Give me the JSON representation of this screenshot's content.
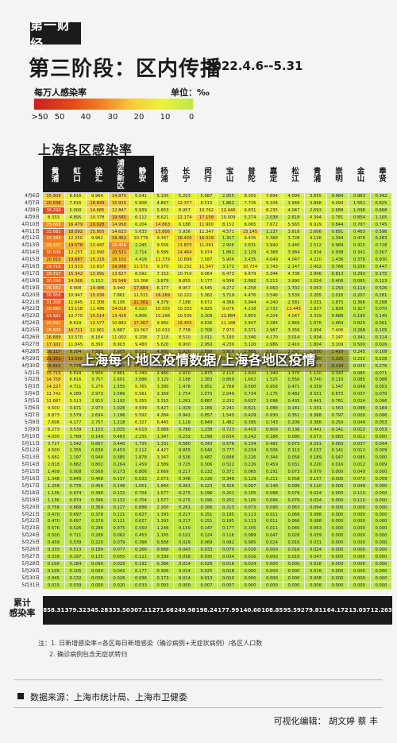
{
  "header": {
    "logo": "第一财经",
    "title": "第三阶段：区内传播",
    "date_range": "2022.4.6--5.31"
  },
  "legend": {
    "title": "每万人感染率",
    "unit": "单位：‰",
    "ticks": [
      ">50",
      "50",
      "40",
      "30",
      "20",
      "10",
      "0"
    ],
    "colors": [
      "#cf1d1c",
      "#e64a1e",
      "#ef8b2b",
      "#f7cc3a",
      "#eef237",
      "#bde74c"
    ]
  },
  "chart_data": {
    "type": "heatmap",
    "title": "上海各区感染率",
    "districts": [
      "黄浦",
      "虹口",
      "徐汇",
      "浦东新区",
      "静安",
      "杨浦",
      "长宁",
      "闵行",
      "宝山",
      "普陀",
      "嘉定",
      "松江",
      "青浦",
      "崇明",
      "金山",
      "奉贤"
    ],
    "dates": [
      "4月6日",
      "4月7日",
      "4月8日",
      "4月9日",
      "4月10日",
      "4月11日",
      "4月12日",
      "4月13日",
      "4月14日",
      "4月15日",
      "4月16日",
      "4月17日",
      "4月18日",
      "4月19日",
      "4月20日",
      "4月21日",
      "4月22日",
      "4月23日",
      "4月24日",
      "4月25日",
      "4月26日",
      "4月27日",
      "4月28日",
      "4月29日",
      "4月30日",
      "5月1日",
      "5月2日",
      "5月3日",
      "5月4日",
      "5月5日",
      "5月6日",
      "5月7日",
      "5月8日",
      "5月9日",
      "5月10日",
      "5月11日",
      "5月12日",
      "5月13日",
      "5月14日",
      "5月15日",
      "5月16日",
      "5月17日",
      "5月18日",
      "5月19日",
      "5月20日",
      "5月21日",
      "5月22日",
      "5月23日",
      "5月24日",
      "5月25日",
      "5月26日",
      "5月27日",
      "5月28日",
      "5月29日",
      "5月30日",
      "5月31日"
    ],
    "values": [
      [
        15.909,
        8.816,
        9.964,
        14.87,
        5.541,
        5.105,
        5.203,
        5.087,
        2.955,
        8.355,
        7.694,
        4.099,
        3.655,
        0.984,
        0.963,
        0.342
      ],
      [
        20.938,
        7.816,
        18.649,
        15.915,
        5.908,
        4.847,
        12.377,
        8.513,
        1.862,
        7.726,
        5.104,
        3.948,
        3.898,
        4.094,
        1.561,
        0.825
      ],
      [
        36.298,
        5.0,
        14.685,
        12.847,
        5.939,
        5.653,
        8.957,
        10.762,
        12.446,
        9.831,
        8.235,
        4.047,
        2.693,
        2.688,
        1.098,
        0.868
      ],
      [
        8.333,
        4.895,
        10.378,
        19.565,
        6.112,
        8.621,
        12.174,
        17.158,
        10.009,
        5.274,
        2.038,
        2.618,
        4.394,
        2.781,
        0.854,
        1.105
      ],
      [
        25.668,
        16.479,
        20.928,
        14.958,
        6.204,
        14.863,
        6.188,
        11.9,
        8.152,
        8.065,
        7.672,
        5.565,
        6.929,
        0.844,
        0.707,
        0.745
      ],
      [
        33.682,
        18.092,
        15.955,
        14.623,
        5.633,
        15.806,
        5.936,
        11.347,
        4.571,
        15.145,
        1.137,
        3.618,
        2.606,
        0.891,
        0.463,
        0.596
      ],
      [
        27.333,
        12.25,
        9.962,
        19.452,
        10.776,
        9.347,
        16.42,
        16.019,
        1.317,
        9.435,
        5.388,
        3.728,
        4.126,
        1.344,
        0.476,
        0.283
      ],
      [
        25.127,
        19.578,
        13.447,
        26.456,
        2.245,
        9.556,
        13.87,
        11.091,
        2.906,
        3.631,
        3.94,
        3.44,
        2.512,
        0.984,
        0.415,
        0.728
      ],
      [
        30.508,
        12.237,
        12.09,
        20.521,
        2.714,
        6.589,
        14.464,
        8.974,
        1.862,
        2.129,
        4.388,
        3.984,
        2.934,
        0.938,
        0.341,
        0.307
      ],
      [
        20.91,
        19.687,
        15.216,
        18.102,
        4.418,
        11.379,
        10.899,
        7.587,
        5.906,
        3.435,
        4.049,
        4.047,
        4.22,
        1.436,
        0.378,
        0.93
      ],
      [
        29.719,
        13.513,
        10.837,
        19.998,
        11.571,
        9.37,
        10.232,
        11.547,
        3.172,
        10.734,
        3.743,
        2.147,
        2.402,
        0.766,
        0.256,
        0.447
      ],
      [
        28.727,
        15.342,
        13.991,
        13.627,
        8.592,
        7.153,
        10.71,
        9.064,
        6.473,
        9.879,
        5.344,
        4.738,
        2.906,
        0.813,
        0.293,
        0.175
      ],
      [
        30.29,
        14.368,
        5.153,
        15.548,
        10.306,
        3.879,
        8.855,
        5.177,
        4.598,
        2.992,
        3.213,
        3.99,
        2.024,
        0.406,
        0.085,
        0.123
      ],
      [
        26.551,
        9.908,
        14.486,
        9.94,
        17.684,
        6.177,
        8.957,
        6.545,
        4.272,
        4.258,
        4.06,
        1.702,
        3.063,
        1.25,
        0.11,
        0.526
      ],
      [
        36.956,
        10.947,
        15.036,
        7.861,
        11.531,
        16.169,
        10.222,
        5.362,
        3.719,
        4.476,
        3.546,
        3.539,
        2.205,
        1.016,
        0.207,
        0.281
      ],
      [
        31.208,
        11.645,
        12.306,
        8.195,
        21.361,
        4.379,
        7.188,
        8.672,
        4.366,
        3.944,
        4.24,
        2.581,
        3.031,
        1.875,
        0.366,
        0.298
      ],
      [
        28.66,
        13.118,
        11.486,
        14.016,
        6.02,
        10.935,
        10.333,
        4.925,
        9.076,
        4.218,
        2.732,
        13.445,
        2.827,
        1.828,
        0.317,
        0.07
      ],
      [
        33.562,
        10.77,
        15.514,
        13.426,
        4.806,
        10.298,
        10.536,
        3.309,
        12.884,
        3.855,
        4.104,
        4.047,
        3.339,
        0.688,
        0.195,
        0.14
      ],
      [
        26.591,
        8.618,
        12.577,
        10.882,
        17.367,
        9.96,
        15.455,
        4.636,
        11.188,
        3.847,
        3.284,
        2.869,
        1.976,
        1.464,
        0.829,
        0.061
      ],
      [
        26.606,
        16.711,
        12.061,
        6.887,
        10.367,
        10.032,
        7.738,
        2.706,
        7.973,
        3.371,
        2.967,
        3.356,
        2.994,
        7.406,
        0.268,
        0.105
      ],
      [
        16.689,
        10.57,
        8.164,
        11.002,
        9.208,
        7.116,
        8.51,
        3.011,
        5.18,
        3.346,
        4.17,
        3.014,
        1.934,
        7.247,
        0.341,
        0.114
      ],
      [
        17.102,
        11.045,
        8.39,
        8.903,
        9.48,
        5.62,
        6.9,
        2.95,
        4.23,
        3.12,
        2.986,
        2.41,
        1.804,
        3.109,
        0.5,
        0.026
      ],
      [
        16.117,
        9.204,
        7.503,
        7.905,
        8.112,
        4.98,
        5.93,
        2.85,
        3.91,
        2.805,
        2.51,
        2.207,
        1.68,
        2.41,
        0.245,
        0.108
      ],
      [
        21.151,
        13.558,
        6.329,
        6.377,
        4.789,
        6.62,
        4.956,
        2.65,
        3.107,
        2.413,
        2.11,
        1.907,
        1.58,
        1.32,
        0.232,
        0.228
      ],
      [
        15.815,
        7.776,
        4.396,
        2.861,
        10.163,
        2.768,
        2.806,
        1.098,
        0.819,
        1.415,
        0.55,
        1.008,
        4.813,
        0.134,
        0.035,
        0.276
      ],
      [
        15.715,
        6.818,
        3.9,
        3.861,
        5.34,
        2.46,
        2.82,
        1.87,
        2.11,
        1.82,
        1.34,
        1.37,
        1.12,
        0.32,
        0.085,
        0.071
      ],
      [
        14.758,
        6.816,
        3.757,
        2.601,
        3.086,
        3.129,
        2.188,
        1.383,
        0.869,
        1.602,
        1.525,
        0.556,
        0.74,
        0.11,
        0.085,
        0.088
      ],
      [
        14.227,
        4.711,
        5.27,
        1.555,
        5.765,
        3.395,
        1.478,
        0.951,
        2.768,
        0.5,
        0.956,
        0.471,
        0.339,
        1.547,
        0.049,
        0.053
      ],
      [
        11.742,
        4.289,
        2.973,
        1.566,
        5.561,
        3.169,
        1.754,
        1.075,
        2.049,
        0.734,
        1.175,
        0.482,
        0.551,
        0.875,
        0.037,
        0.07
      ],
      [
        11.687,
        5.513,
        2.91,
        1.192,
        5.255,
        3.315,
        1.261,
        0.887,
        2.232,
        0.637,
        1.098,
        0.435,
        0.441,
        0.781,
        0.024,
        0.096
      ],
      [
        9.5,
        3.671,
        2.973,
        1.026,
        4.939,
        3.427,
        1.029,
        1.166,
        2.241,
        0.621,
        1.088,
        0.141,
        1.331,
        1.563,
        0.098,
        0.184
      ],
      [
        8.873,
        3.579,
        2.694,
        1.196,
        5.592,
        4.284,
        0.942,
        0.857,
        1.54,
        0.429,
        0.93,
        0.351,
        0.368,
        0.797,
        0.0,
        0.096
      ],
      [
        7.606,
        4.177,
        2.757,
        1.218,
        6.327,
        6.445,
        1.116,
        0.849,
        1.482,
        0.395,
        0.743,
        0.209,
        0.386,
        0.25,
        0.049,
        0.053
      ],
      [
        6.273,
        3.539,
        1.153,
        1.035,
        4.01,
        3.089,
        0.768,
        1.238,
        0.723,
        0.403,
        0.809,
        0.136,
        0.441,
        0.141,
        0.012,
        0.053
      ],
      [
        4.0,
        1.789,
        0.149,
        0.463,
        2.235,
        1.347,
        0.232,
        0.298,
        0.634,
        0.242,
        0.186,
        0.09,
        0.573,
        0.063,
        0.012,
        0.0
      ],
      [
        3.727,
        1.342,
        0.667,
        0.44,
        1.735,
        1.331,
        0.58,
        0.343,
        0.576,
        0.234,
        0.492,
        0.073,
        0.291,
        0.063,
        0.037,
        0.044
      ],
      [
        4.5,
        1.355,
        0.838,
        0.453,
        2.112,
        4.427,
        0.855,
        0.54,
        0.777,
        0.234,
        0.506,
        0.113,
        0.157,
        0.141,
        0.012,
        0.009
      ],
      [
        5.682,
        1.197,
        0.946,
        0.385,
        1.878,
        3.347,
        0.536,
        0.487,
        0.688,
        0.226,
        0.344,
        0.058,
        0.189,
        0.047,
        0.085,
        0.0
      ],
      [
        2.818,
        0.882,
        0.802,
        0.264,
        1.459,
        2.589,
        0.725,
        0.306,
        0.522,
        0.226,
        0.459,
        0.031,
        0.22,
        0.016,
        0.012,
        0.009
      ],
      [
        1.409,
        0.908,
        0.568,
        0.173,
        0.806,
        2.669,
        0.217,
        0.132,
        0.371,
        0.065,
        0.191,
        0.073,
        0.079,
        0.0,
        0.049,
        0.0
      ],
      [
        1.348,
        0.645,
        0.468,
        0.137,
        0.033,
        2.073,
        0.348,
        0.136,
        0.348,
        0.129,
        0.211,
        0.058,
        0.157,
        0.0,
        0.073,
        0.009
      ],
      [
        1.258,
        0.776,
        0.459,
        0.146,
        1.051,
        1.864,
        0.261,
        0.223,
        0.326,
        0.097,
        0.148,
        0.099,
        0.11,
        0.0,
        0.049,
        0.0
      ],
      [
        1.136,
        0.974,
        0.396,
        0.132,
        0.704,
        1.577,
        0.275,
        0.196,
        0.201,
        0.105,
        0.098,
        0.079,
        0.024,
        0.0,
        0.11,
        0.0
      ],
      [
        1.136,
        0.974,
        0.396,
        0.132,
        0.704,
        1.577,
        0.275,
        0.196,
        0.201,
        0.105,
        0.098,
        0.079,
        0.024,
        0.0,
        0.11,
        0.0
      ],
      [
        0.758,
        0.868,
        0.369,
        0.127,
        0.888,
        2.26,
        0.261,
        0.166,
        0.213,
        0.073,
        0.098,
        0.063,
        0.094,
        0.0,
        0.0,
        0.0
      ],
      [
        0.47,
        0.697,
        0.378,
        0.121,
        0.627,
        1.393,
        0.217,
        0.151,
        0.195,
        0.113,
        0.011,
        0.066,
        0.088,
        0.0,
        0.0,
        0.0
      ],
      [
        0.47,
        0.697,
        0.378,
        0.121,
        0.627,
        1.393,
        0.217,
        0.151,
        0.195,
        0.113,
        0.011,
        0.066,
        0.088,
        0.0,
        0.0,
        0.0
      ],
      [
        0.576,
        0.526,
        0.286,
        0.075,
        0.55,
        1.246,
        0.159,
        0.147,
        0.177,
        0.105,
        0.011,
        0.046,
        0.063,
        0.0,
        0.0,
        0.0
      ],
      [
        0.5,
        0.711,
        0.288,
        0.062,
        0.453,
        1.165,
        0.101,
        0.124,
        0.116,
        0.089,
        0.047,
        0.026,
        0.039,
        0.0,
        0.0,
        0.0
      ],
      [
        0.439,
        0.539,
        0.22,
        0.079,
        0.398,
        0.568,
        0.029,
        0.069,
        0.082,
        0.065,
        0.024,
        0.016,
        0.031,
        0.0,
        0.0,
        0.0
      ],
      [
        0.333,
        0.513,
        0.189,
        0.077,
        0.266,
        0.668,
        0.043,
        0.033,
        0.07,
        0.016,
        0.0,
        0.016,
        0.024,
        0.0,
        0.0,
        0.0
      ],
      [
        0.318,
        0.197,
        0.135,
        0.055,
        0.121,
        0.399,
        0.058,
        0.03,
        0.034,
        0.016,
        0.0,
        0.016,
        0.047,
        0.0,
        0.0,
        0.0
      ],
      [
        0.106,
        0.184,
        0.09,
        0.029,
        0.192,
        0.386,
        0.014,
        0.026,
        0.016,
        0.024,
        0.0,
        0.0,
        0.016,
        0.0,
        0.0,
        0.0
      ],
      [
        0.106,
        0.105,
        0.099,
        0.042,
        0.177,
        0.306,
        0.014,
        0.025,
        0.018,
        0.0,
        0.0,
        0.0,
        0.016,
        0.0,
        0.0,
        0.0
      ],
      [
        0.045,
        0.132,
        0.036,
        0.026,
        0.036,
        0.173,
        0.014,
        0.013,
        0.01,
        0.0,
        0.0,
        0.0,
        0.008,
        0.0,
        0.0,
        0.0
      ],
      [
        0.015,
        0.039,
        0.0,
        0.02,
        0.033,
        0.093,
        0.0,
        0.007,
        0.007,
        0.0,
        0.0,
        0.0,
        0.008,
        0.0,
        0.0,
        0.0
      ]
    ],
    "totals_label": "累计\n感染率",
    "totals": [
      "858.31",
      "379.32",
      "345.28",
      "333.50",
      "307.11",
      "271.66",
      "249.98",
      "198.24",
      "177.99",
      "140.60",
      "108.85",
      "95.592",
      "79.811",
      "64.172",
      "13.037",
      "12.263"
    ],
    "value_range": [
      0,
      50
    ]
  },
  "notes": [
    "注：1. 日新增感染率=各区每日新增感染（确诊病例+无症状病例）/各区人口数",
    "2. 确诊病例包含无症状转归"
  ],
  "footer": {
    "source": "数据来源：上海市统计局、上海市卫健委",
    "editors": "可视化编辑：  胡文婷   蔡 丰"
  },
  "overlay_text": "上海每个地区疫情数据/上海各地区疫情"
}
